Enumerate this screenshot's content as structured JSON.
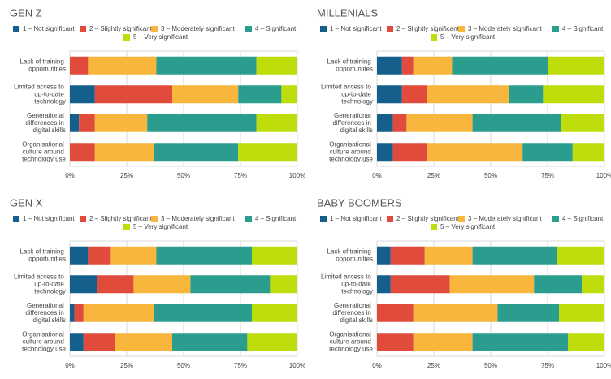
{
  "chart_data": [
    {
      "type": "bar",
      "orientation": "horizontal",
      "stacked": true,
      "title": "GEN Z",
      "categories": [
        "Lack of training opportunities",
        "Limited access to up-to-date technology",
        "Generational differences in digital skills",
        "Organisational culture around technology use"
      ],
      "series": [
        {
          "name": "1 – Not significant",
          "color": "#155f8c",
          "values": [
            0,
            11,
            4,
            0
          ]
        },
        {
          "name": "2 – Slightly significant",
          "color": "#e14b3b",
          "values": [
            8,
            34,
            7,
            11
          ]
        },
        {
          "name": "3 – Moderately significant",
          "color": "#f8b73c",
          "values": [
            30,
            29,
            23,
            26
          ]
        },
        {
          "name": "4 – Significant",
          "color": "#2a9d8f",
          "values": [
            44,
            19,
            48,
            37
          ]
        },
        {
          "name": "5 – Very significant",
          "color": "#bedd0a",
          "values": [
            18,
            7,
            18,
            26
          ]
        }
      ],
      "xlim": [
        0,
        100
      ],
      "xticks": [
        {
          "value": 0,
          "label": "0%"
        },
        {
          "value": 25,
          "label": "25%"
        },
        {
          "value": 50,
          "label": "50%"
        },
        {
          "value": 75,
          "label": "75%"
        },
        {
          "value": 100,
          "label": "100%"
        }
      ],
      "grid": true
    },
    {
      "type": "bar",
      "orientation": "horizontal",
      "stacked": true,
      "title": "MILLENIALS",
      "categories": [
        "Lack of training opportunities",
        "Limited access to up-to-date technology",
        "Generational differences in digital skills",
        "Organisational culture around technology use"
      ],
      "series": [
        {
          "name": "1 – Not significant",
          "color": "#155f8c",
          "values": [
            11,
            11,
            7,
            7
          ]
        },
        {
          "name": "2 – Slightly significant",
          "color": "#e14b3b",
          "values": [
            5,
            11,
            6,
            15
          ]
        },
        {
          "name": "3 – Moderately significant",
          "color": "#f8b73c",
          "values": [
            17,
            36,
            29,
            42
          ]
        },
        {
          "name": "4 – Significant",
          "color": "#2a9d8f",
          "values": [
            42,
            15,
            39,
            22
          ]
        },
        {
          "name": "5 – Very significant",
          "color": "#bedd0a",
          "values": [
            25,
            27,
            19,
            14
          ]
        }
      ],
      "xlim": [
        0,
        100
      ],
      "xticks": [
        {
          "value": 0,
          "label": "0%"
        },
        {
          "value": 25,
          "label": "25%"
        },
        {
          "value": 50,
          "label": "50%"
        },
        {
          "value": 75,
          "label": "75%"
        },
        {
          "value": 100,
          "label": "100%"
        }
      ],
      "grid": true
    },
    {
      "type": "bar",
      "orientation": "horizontal",
      "stacked": true,
      "title": "GEN X",
      "categories": [
        "Lack of training opportunities",
        "Limited access to up-to-date technology",
        "Generational differences in digital skills",
        "Organisational culture around technology use"
      ],
      "series": [
        {
          "name": "1 – Not significant",
          "color": "#155f8c",
          "values": [
            8,
            12,
            2,
            6
          ]
        },
        {
          "name": "2 – Slightly significant",
          "color": "#e14b3b",
          "values": [
            10,
            16,
            4,
            14
          ]
        },
        {
          "name": "3 – Moderately significant",
          "color": "#f8b73c",
          "values": [
            20,
            25,
            31,
            25
          ]
        },
        {
          "name": "4 – Significant",
          "color": "#2a9d8f",
          "values": [
            42,
            35,
            43,
            33
          ]
        },
        {
          "name": "5 – Very significant",
          "color": "#bedd0a",
          "values": [
            20,
            12,
            20,
            22
          ]
        }
      ],
      "xlim": [
        0,
        100
      ],
      "xticks": [
        {
          "value": 0,
          "label": "0%"
        },
        {
          "value": 25,
          "label": "25%"
        },
        {
          "value": 50,
          "label": "50%"
        },
        {
          "value": 75,
          "label": "75%"
        },
        {
          "value": 100,
          "label": "100%"
        }
      ],
      "grid": true
    },
    {
      "type": "bar",
      "orientation": "horizontal",
      "stacked": true,
      "title": "BABY BOOMERS",
      "categories": [
        "Lack of training opportunities",
        "Limited access to up-to-date technology",
        "Generational differences in digital skills",
        "Organisational culture around technology use"
      ],
      "series": [
        {
          "name": "1 – Not significant",
          "color": "#155f8c",
          "values": [
            6,
            6,
            0,
            0
          ]
        },
        {
          "name": "2 – Slightly significant",
          "color": "#e14b3b",
          "values": [
            15,
            26,
            16,
            16
          ]
        },
        {
          "name": "3 – Moderately significant",
          "color": "#f8b73c",
          "values": [
            21,
            37,
            37,
            26
          ]
        },
        {
          "name": "4 – Significant",
          "color": "#2a9d8f",
          "values": [
            37,
            21,
            27,
            42
          ]
        },
        {
          "name": "5 – Very significant",
          "color": "#bedd0a",
          "values": [
            21,
            10,
            20,
            16
          ]
        }
      ],
      "xlim": [
        0,
        100
      ],
      "xticks": [
        {
          "value": 0,
          "label": "0%"
        },
        {
          "value": 25,
          "label": "25%"
        },
        {
          "value": 50,
          "label": "50%"
        },
        {
          "value": 75,
          "label": "75%"
        },
        {
          "value": 100,
          "label": "100%"
        }
      ],
      "grid": true
    }
  ]
}
